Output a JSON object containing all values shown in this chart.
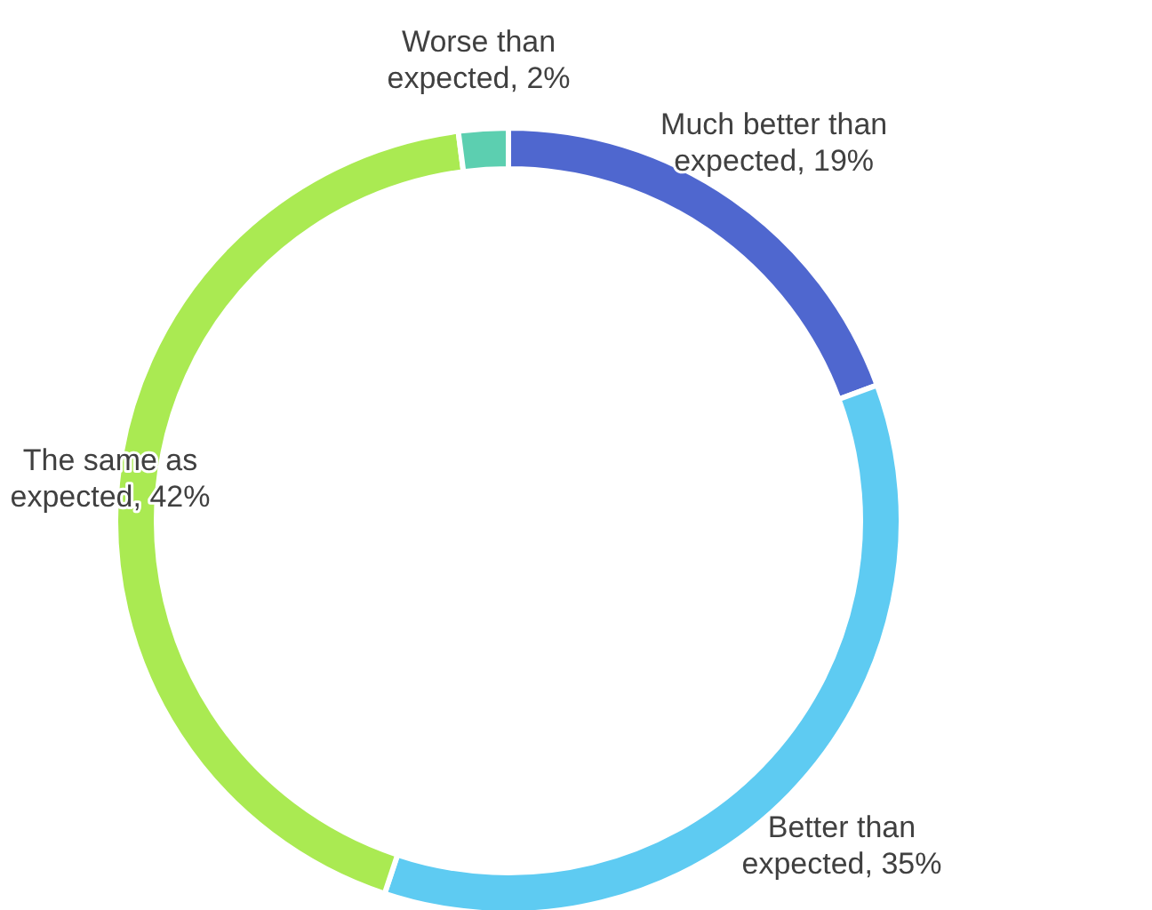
{
  "chart_data": {
    "type": "donut",
    "categories": [
      "Much better than expected",
      "Better than expected",
      "The same as expected",
      "Worse than expected"
    ],
    "values": [
      19,
      35,
      42,
      2
    ],
    "value_labels": [
      "19%",
      "35%",
      "42%",
      "2%"
    ],
    "colors": [
      "#4f67cf",
      "#5ecbf2",
      "#aaea52",
      "#5ccfb0"
    ]
  }
}
